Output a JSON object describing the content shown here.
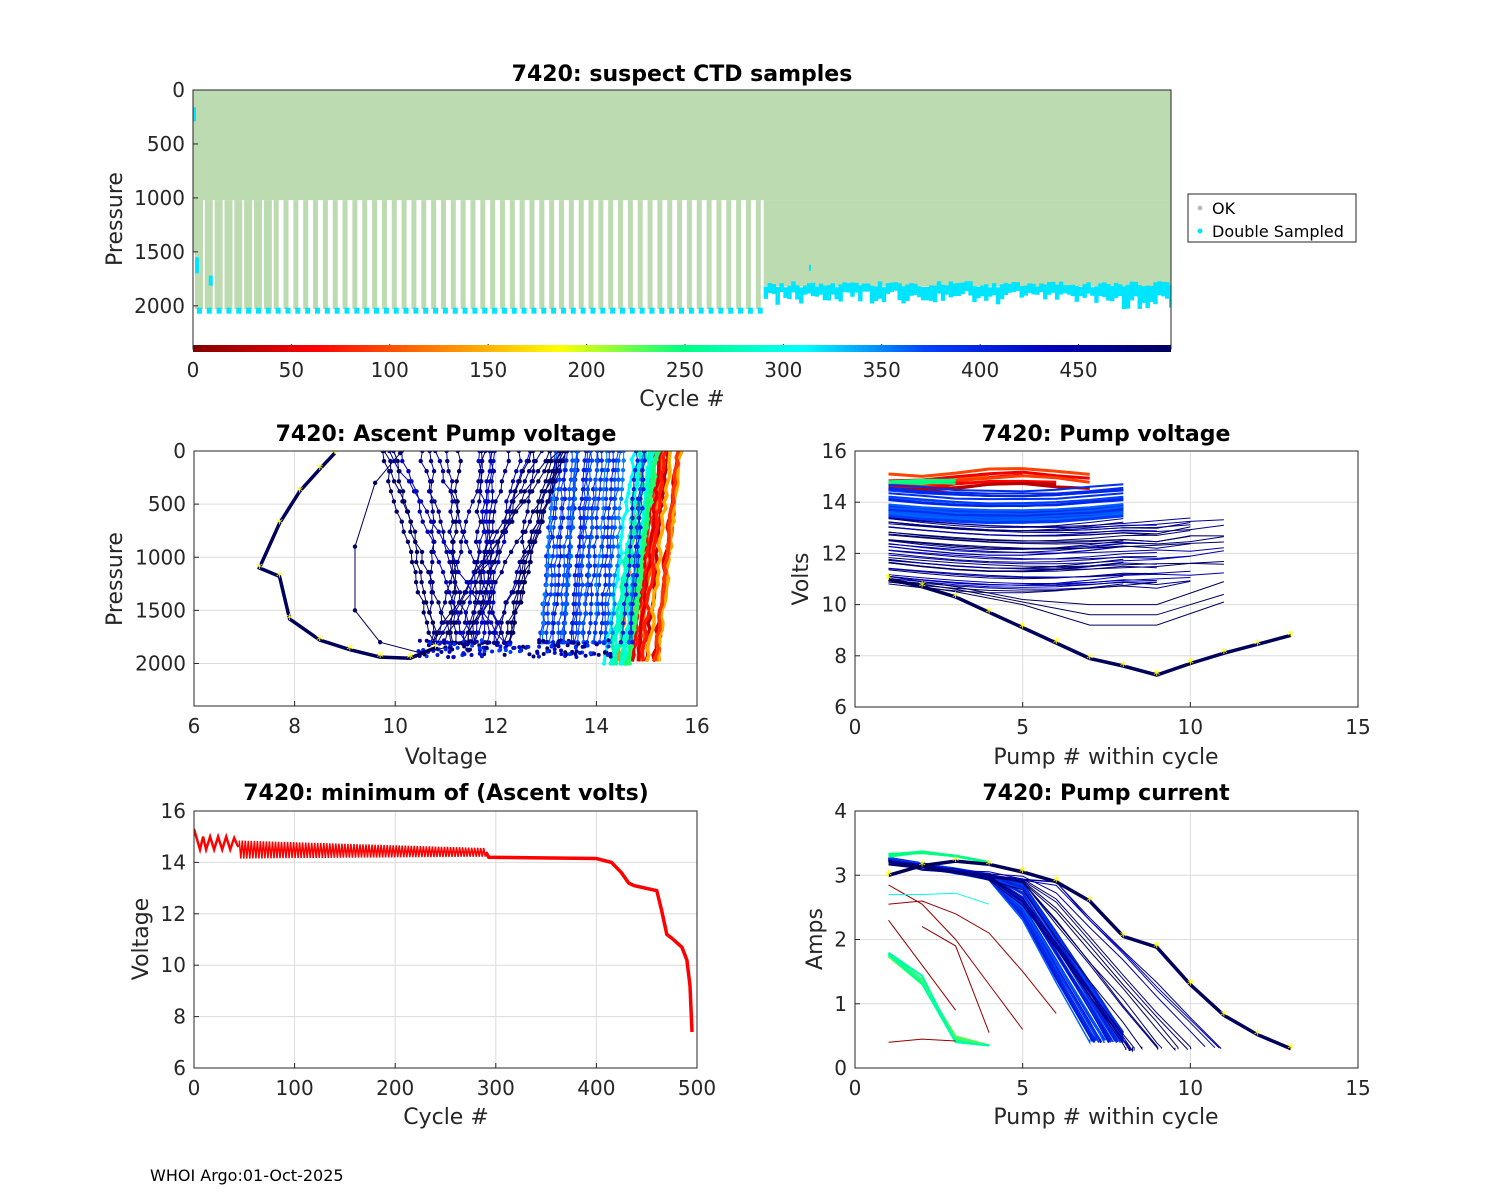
{
  "footer": "WHOI Argo:01-Oct-2025",
  "colors": {
    "ok": "#bcdbb0",
    "double_sampled": "#00e5ff",
    "min_volts": "#ff0000",
    "yellow_marker": "#ffff00",
    "dark_navy": "#00005a"
  },
  "chart_data": [
    {
      "id": "suspect",
      "type": "scatter",
      "title": "7420: suspect CTD samples",
      "xlabel": "Cycle #",
      "ylabel": "Pressure",
      "xlim": [
        0,
        497
      ],
      "ylim": [
        2400,
        0
      ],
      "x_reverse": false,
      "y_reverse": true,
      "xticks": [
        0,
        50,
        100,
        150,
        200,
        250,
        300,
        350,
        400,
        450
      ],
      "yticks": [
        0,
        500,
        1000,
        1500,
        2000
      ],
      "legend": [
        "OK",
        "Double Sampled"
      ],
      "legend_position": "outside-right",
      "colorbar_range": [
        0,
        497
      ],
      "ok_profile_bottom": {
        "cycles_0_290": 1020,
        "cycles_290_497": 1820
      },
      "double_sampled_depth": {
        "cycles_0_290": 2030,
        "cycles_290_497": 1870
      }
    },
    {
      "id": "ascent",
      "type": "line",
      "title": "7420: Ascent Pump voltage",
      "xlabel": "Voltage",
      "ylabel": "Pressure",
      "xlim": [
        6,
        16
      ],
      "ylim": [
        2400,
        0
      ],
      "y_reverse": true,
      "xticks": [
        6,
        8,
        10,
        12,
        14,
        16
      ],
      "yticks": [
        0,
        500,
        1000,
        1500,
        2000
      ],
      "last_cycle": {
        "x": [
          8.8,
          8.5,
          8.1,
          7.7,
          7.3,
          7.7,
          7.9,
          8.5,
          9.1,
          9.7,
          10.3,
          10.8
        ],
        "y": [
          20,
          170,
          380,
          680,
          1100,
          1180,
          1580,
          1780,
          1870,
          1940,
          1950,
          1850
        ]
      }
    },
    {
      "id": "pumpv",
      "type": "line",
      "title": "7420: Pump voltage",
      "xlabel": "Pump # within cycle",
      "ylabel": "Volts",
      "xlim": [
        0,
        15
      ],
      "ylim": [
        6,
        16
      ],
      "xticks": [
        0,
        5,
        10,
        15
      ],
      "yticks": [
        6,
        8,
        10,
        12,
        14,
        16
      ],
      "last_cycle": {
        "x": [
          1,
          2,
          3,
          4,
          5,
          6,
          7,
          8,
          9,
          10,
          11,
          12,
          13
        ],
        "y": [
          11.0,
          10.7,
          10.3,
          9.7,
          9.1,
          8.5,
          7.9,
          7.6,
          7.25,
          7.7,
          8.1,
          8.45,
          8.8
        ]
      }
    },
    {
      "id": "minv",
      "type": "line",
      "title": "7420: minimum of (Ascent volts)",
      "xlabel": "Cycle #",
      "ylabel": "Voltage",
      "xlim": [
        0,
        500
      ],
      "ylim": [
        6,
        16
      ],
      "xticks": [
        0,
        100,
        200,
        300,
        400,
        500
      ],
      "yticks": [
        6,
        8,
        10,
        12,
        14,
        16
      ],
      "x": [
        0,
        3,
        6,
        10,
        20,
        30,
        45,
        100,
        200,
        290,
        293,
        400,
        415,
        425,
        432,
        437,
        460,
        465,
        470,
        475,
        485,
        490,
        493,
        495
      ],
      "y": [
        15.3,
        14.9,
        14.5,
        14.9,
        14.7,
        14.8,
        14.6,
        14.5,
        14.45,
        14.4,
        14.2,
        14.15,
        14.0,
        13.6,
        13.2,
        13.1,
        12.9,
        12.1,
        11.2,
        11.05,
        10.7,
        10.2,
        9.2,
        7.4
      ]
    },
    {
      "id": "pumpc",
      "type": "line",
      "title": "7420: Pump current",
      "xlabel": "Pump # within cycle",
      "ylabel": "Amps",
      "xlim": [
        0,
        15
      ],
      "ylim": [
        0,
        4
      ],
      "xticks": [
        0,
        5,
        10,
        15
      ],
      "yticks": [
        0,
        1,
        2,
        3,
        4
      ],
      "last_cycle": {
        "x": [
          1,
          2,
          3,
          4,
          5,
          6,
          7,
          8,
          9,
          10,
          11,
          12,
          13
        ],
        "y": [
          3.0,
          3.15,
          3.22,
          3.17,
          3.05,
          2.9,
          2.6,
          2.05,
          1.88,
          1.3,
          0.82,
          0.52,
          0.3
        ]
      }
    }
  ]
}
